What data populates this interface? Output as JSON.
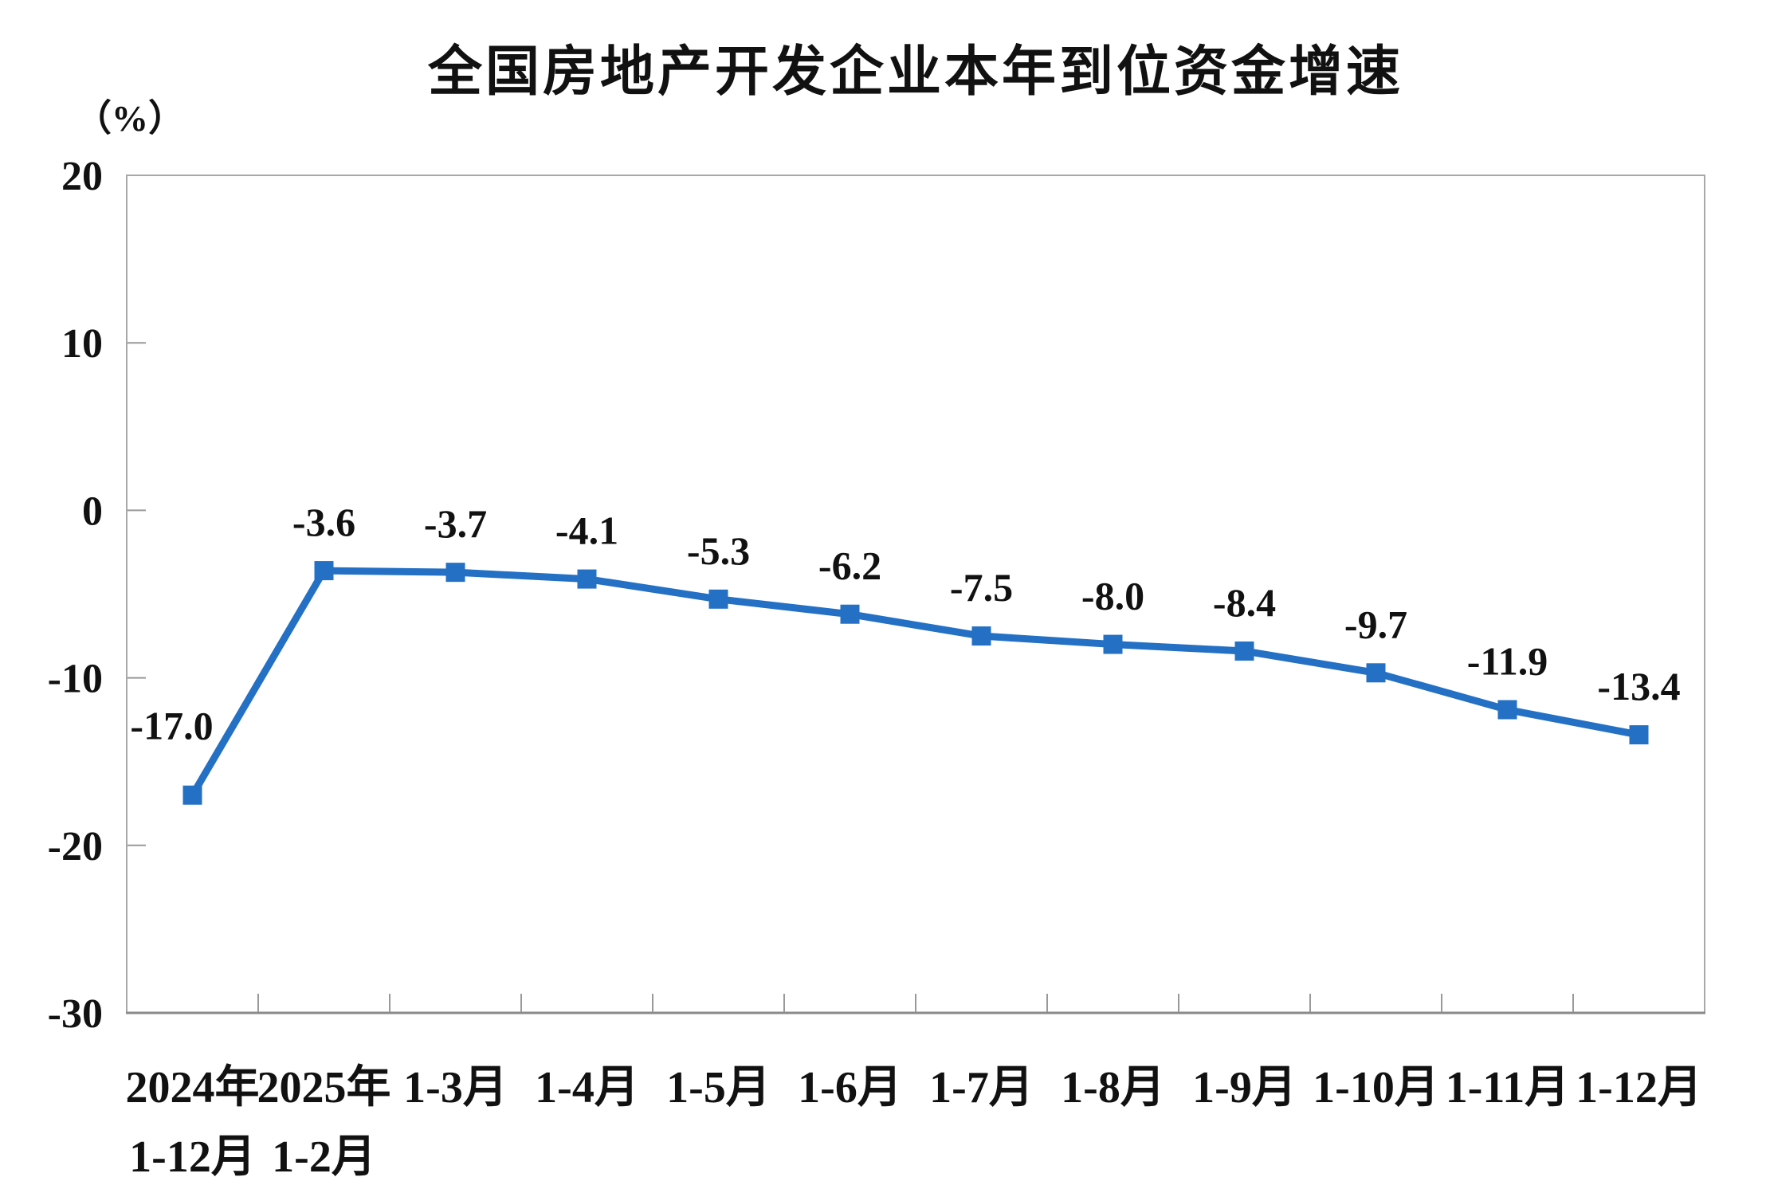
{
  "chart_data": {
    "type": "line",
    "title": "全国房地产开发企业本年到位资金增速",
    "unit_label": "（%）",
    "categories": [
      "2024年\n1-12月",
      "2025年\n1-2月",
      "1-3月",
      "1-4月",
      "1-5月",
      "1-6月",
      "1-7月",
      "1-8月",
      "1-9月",
      "1-10月",
      "1-11月",
      "1-12月"
    ],
    "values": [
      -17.0,
      -3.6,
      -3.7,
      -4.1,
      -5.3,
      -6.2,
      -7.5,
      -8.0,
      -8.4,
      -9.7,
      -11.9,
      -13.4
    ],
    "data_labels": [
      "-17.0",
      "-3.6",
      "-3.7",
      "-4.1",
      "-5.3",
      "-6.2",
      "-7.5",
      "-8.0",
      "-8.4",
      "-9.7",
      "-11.9",
      "-13.4"
    ],
    "ylim": [
      -30,
      20
    ],
    "y_ticks": [
      20,
      10,
      0,
      -10,
      -20,
      -30
    ],
    "y_tick_step": 10,
    "xlabel": "",
    "ylabel": "（%）",
    "grid": false,
    "legend": false,
    "marker": "square",
    "colors": {
      "series": "#2470C4",
      "frame": "#A8A8A8",
      "axis_line": "#8A8A8A",
      "tick": "#999999",
      "text": "#111111"
    }
  }
}
